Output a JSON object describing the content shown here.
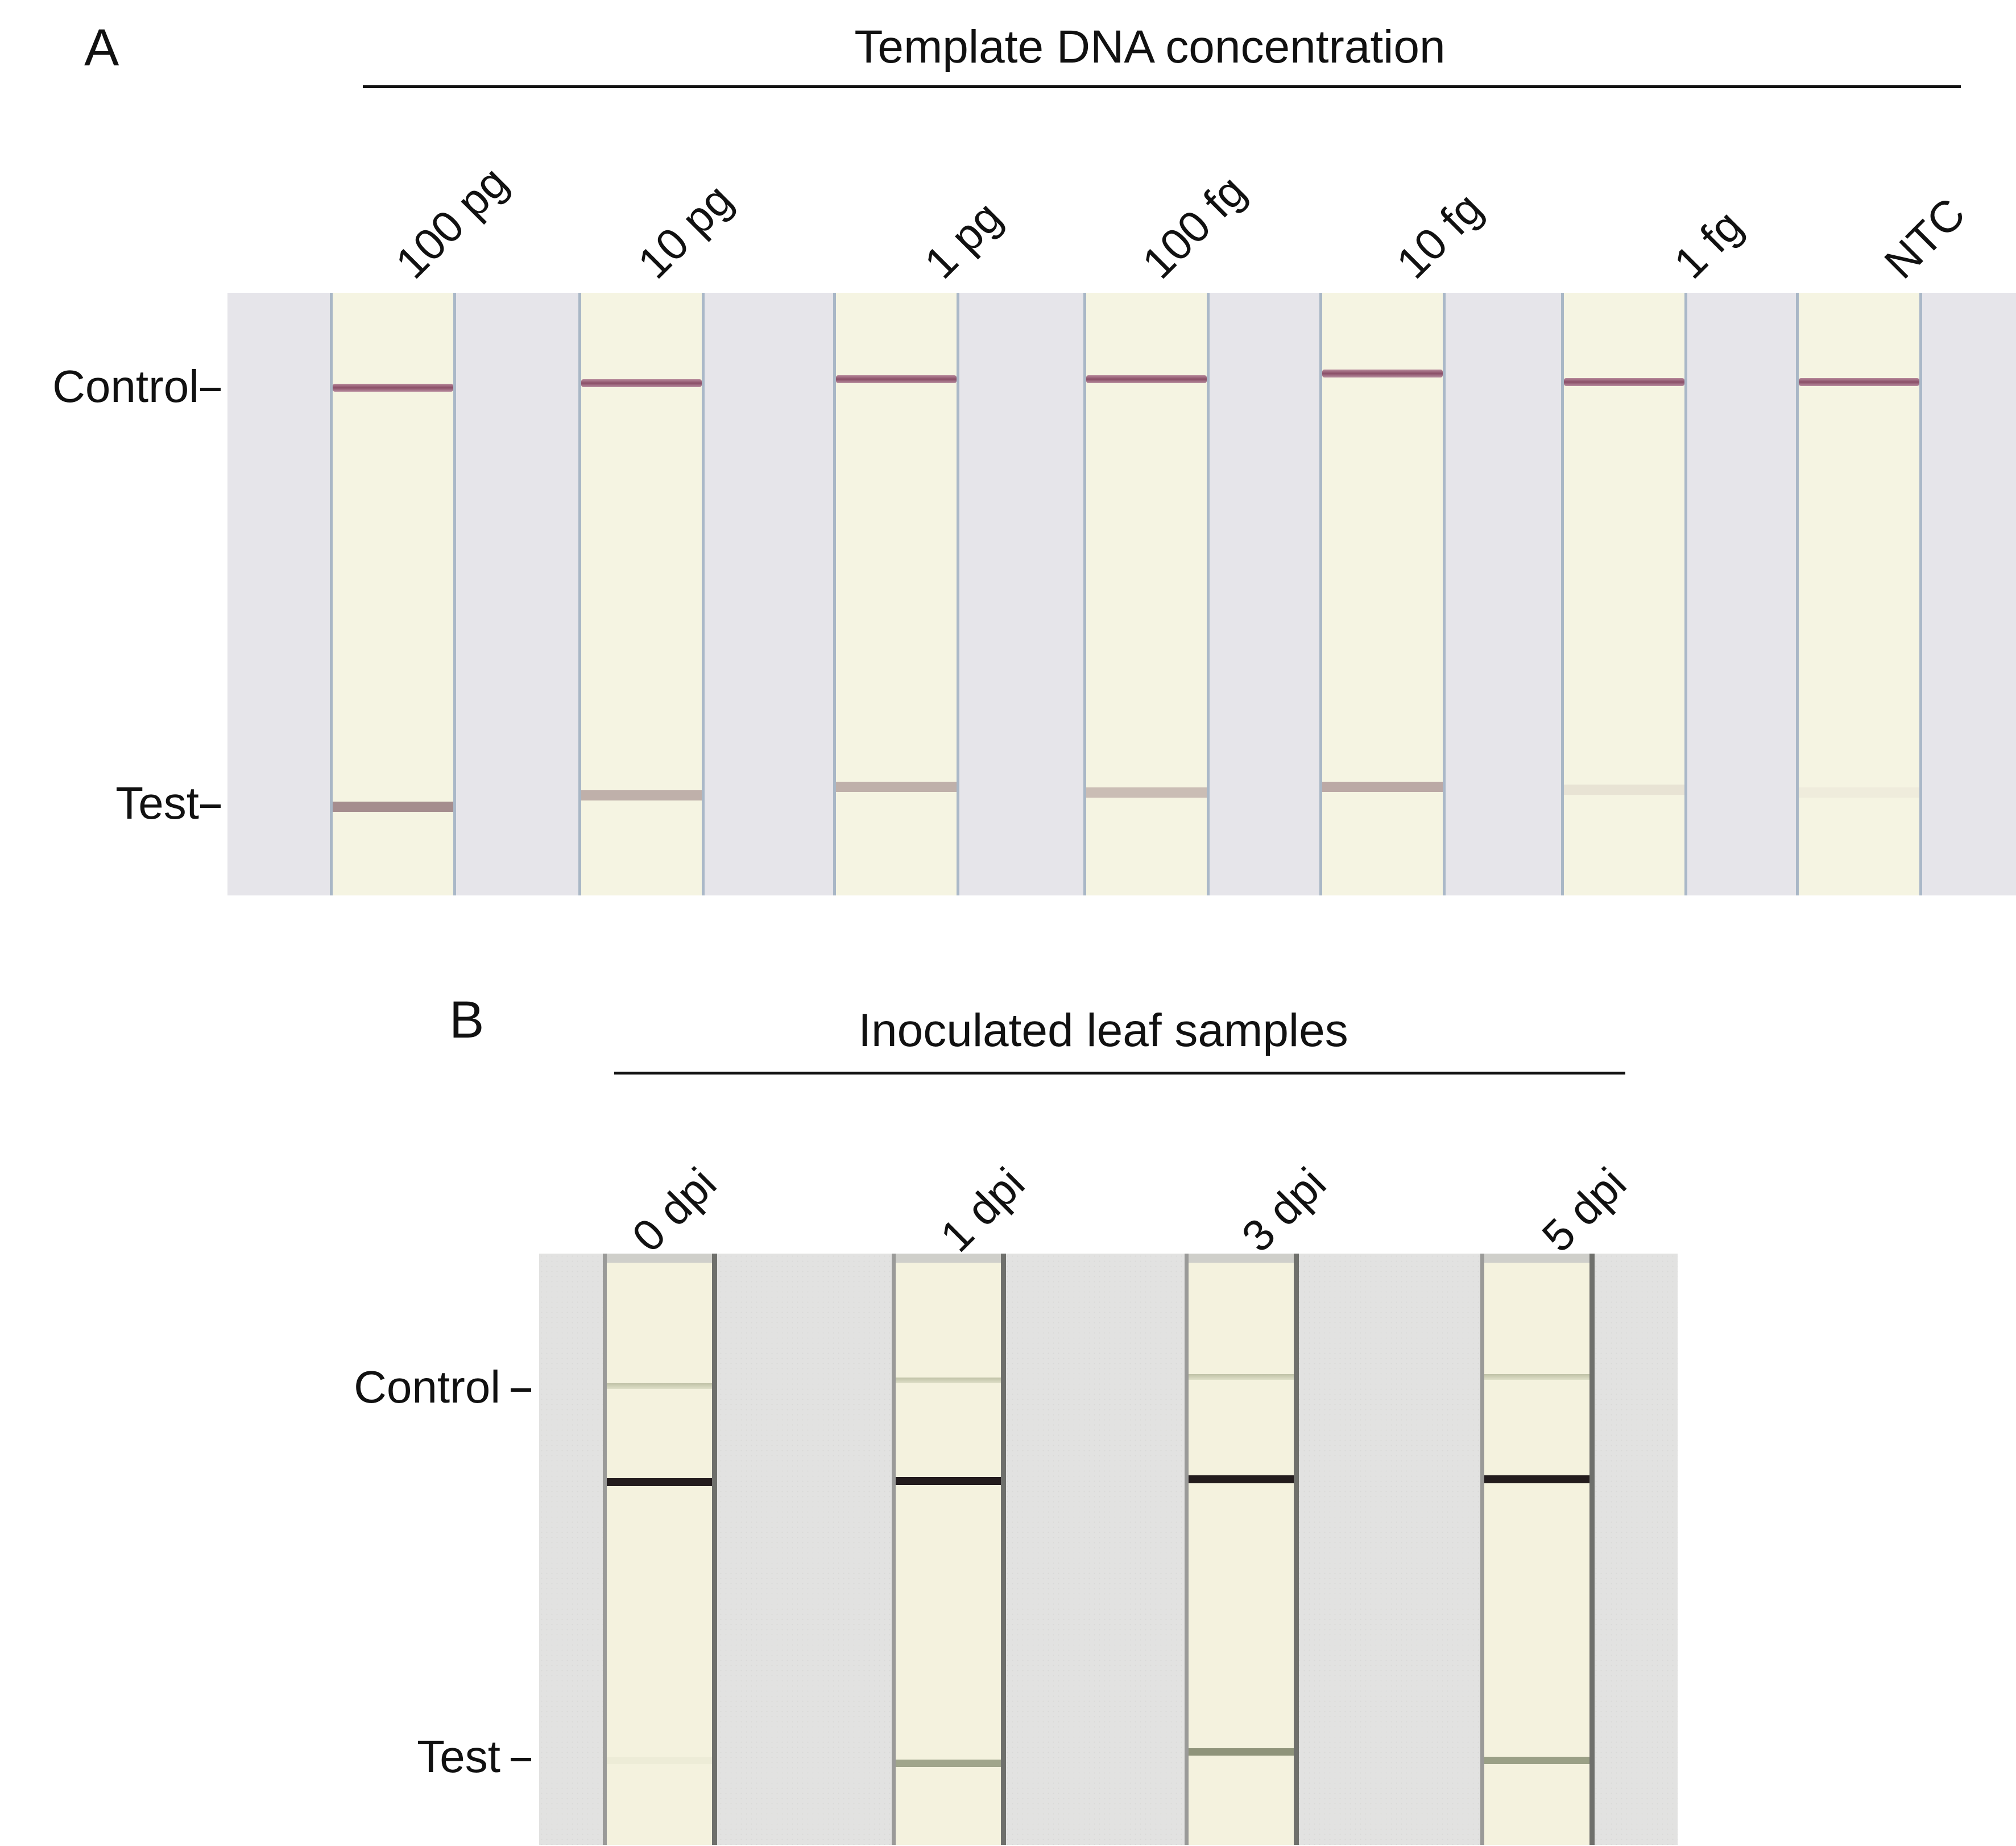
{
  "panel_a": {
    "letter": "A",
    "header": "Template DNA concentration",
    "lanes": [
      "100 pg",
      "10 pg",
      "1 pg",
      "100 fg",
      "10 fg",
      "1 fg",
      "NTC"
    ],
    "row_labels": {
      "control": "Control",
      "test": "Test"
    },
    "test_line_intensity": [
      0.75,
      0.5,
      0.5,
      0.4,
      0.55,
      0.12,
      0.05
    ]
  },
  "panel_b": {
    "letter": "B",
    "header": "Inoculated leaf samples",
    "lanes": [
      "0 dpi",
      "1 dpi",
      "3 dpi",
      "5 dpi"
    ],
    "row_labels": {
      "control": "Control",
      "test": "Test"
    },
    "test_line_intensity": [
      0.05,
      0.7,
      0.85,
      0.75
    ]
  }
}
